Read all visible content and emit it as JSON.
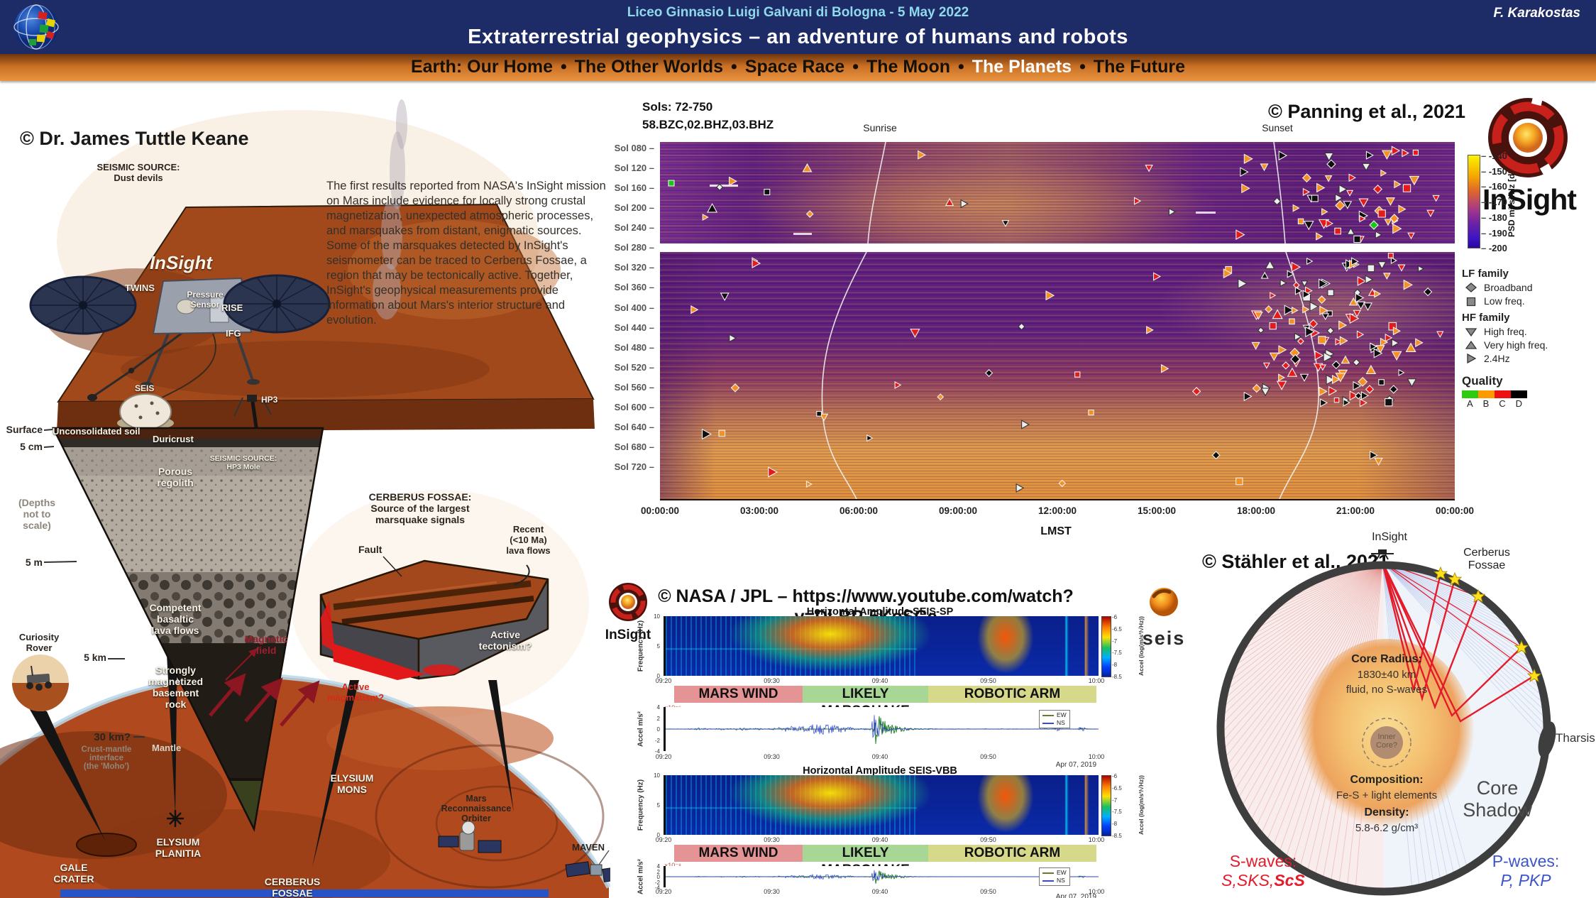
{
  "header": {
    "event": "Liceo Ginnasio Luigi Galvani di Bologna - 5 May 2022",
    "author": "F. Karakostas",
    "title": "Extraterrestrial geophysics – an adventure of humans and robots",
    "nav_separator": "•",
    "nav_items": [
      {
        "label": "Earth: Our Home",
        "active": false
      },
      {
        "label": "The Other Worlds",
        "active": false
      },
      {
        "label": "Space Race",
        "active": false
      },
      {
        "label": "The Moon",
        "active": false
      },
      {
        "label": "The Planets",
        "active": true
      },
      {
        "label": "The Future",
        "active": false
      }
    ]
  },
  "keane": {
    "credit": "© Dr. James Tuttle Keane",
    "paragraph": "The first results reported from NASA's InSight mission on Mars include evidence for locally strong crustal magnetization, unexpected atmospheric processes, and marsquakes from distant, enigmatic sources. Some of the marsquakes detected by InSight's seismometer can be traced to Cerberus Fossae, a region that may be tectonically active. Together, InSight's geophysical measurements provide information about Mars's interior structure and evolution.",
    "labels": {
      "dust_devils": "SEISMIC SOURCE:\nDust devils",
      "insight": "InSight",
      "twins": "TWINS",
      "pressure": "Pressure\nSensor",
      "rise": "RISE",
      "ifg": "IFG",
      "seis": "SEIS",
      "hp3": "HP3",
      "hp3_mole": "SEISMIC SOURCE:\nHP3 Mole",
      "surface": "Surface",
      "unconsolidated": "Unconsolidated soil",
      "duricrust": "Duricrust",
      "d5cm": "5 cm",
      "porous": "Porous\nregolith",
      "depths": "(Depths\nnot to\nscale)",
      "d5m": "5 m",
      "basaltic": "Competent\nbasaltic\nlava flows",
      "curiosity": "Curiosity\nRover",
      "magfield": "Magnetic\nfield",
      "d5km": "5 km",
      "magnetized": "Strongly\nmagnetized\nbasement\nrock",
      "d30km": "30 km?",
      "moho": "Crust-mantle\ninterface\n(the 'Moho')",
      "mantle": "Mantle",
      "gale": "GALE\nCRATER",
      "elysium_planitia": "ELYSIUM\nPLANITIA",
      "cerberus": "CERBERUS\nFOSSAE",
      "elysium_mons": "ELYSIUM\nMONS",
      "mro": "Mars\nReconnaissance\nOrbiter",
      "maven": "MAVEN"
    },
    "block": {
      "title": "CERBERUS FOSSAE:\nSource of the largest\nmarsquake signals",
      "fault": "Fault",
      "lava": "Recent\n(<10 Ma)\nlava flows",
      "tectonism": "Active\ntectonism?",
      "magmatism": "Active\nmagmatism?"
    }
  },
  "panning": {
    "credit": "© Panning et al., 2021",
    "sols": "Sols: 72-750",
    "channels": "58.BZC,02.BHZ,03.BHZ",
    "sunrise": "Sunrise",
    "sunset": "Sunset",
    "xlabel": "LMST",
    "x_ticks": [
      "00:00:00",
      "03:00:00",
      "06:00:00",
      "09:00:00",
      "12:00:00",
      "15:00:00",
      "18:00:00",
      "21:00:00",
      "00:00:00"
    ],
    "sol_ticks": [
      "Sol 080",
      "Sol 120",
      "Sol 160",
      "Sol 200",
      "Sol 240",
      "Sol 280",
      "Sol 320",
      "Sol 360",
      "Sol 400",
      "Sol 440",
      "Sol 480",
      "Sol 520",
      "Sol 560",
      "Sol 600",
      "Sol 640",
      "Sol 680",
      "Sol 720"
    ],
    "colorbar_label": "PSD m²/s²/Hz [dB]",
    "colorbar_ticks": [
      "-140",
      "-150",
      "-160",
      "-170",
      "-180",
      "-190",
      "-200"
    ],
    "insight_logo_text": "InSight",
    "legend": {
      "lf_title": "LF family",
      "lf_items": [
        {
          "marker": "diamond",
          "label": "Broadband"
        },
        {
          "marker": "square",
          "label": "Low freq."
        }
      ],
      "hf_title": "HF family",
      "hf_items": [
        {
          "marker": "triangle-down",
          "label": "High freq."
        },
        {
          "marker": "triangle-up",
          "label": "Very high freq."
        },
        {
          "marker": "triangle-right",
          "label": "2.4Hz"
        }
      ],
      "quality_title": "Quality",
      "quality_labels": [
        "A",
        "B",
        "C",
        "D"
      ],
      "quality_colors": [
        "#2ecc11",
        "#ff9900",
        "#ee1111",
        "#000000"
      ]
    }
  },
  "nasa": {
    "credit": "© NASA / JPL – https://www.youtube.com/watch?v=DLBP-5KoSCc",
    "insight_logo_text": "InSight",
    "seis_logo_text": "seis",
    "spec1_title": "Horizontal Amplitude SEIS-SP",
    "spec2_title": "Horizontal Amplitude SEIS-VBB",
    "freq_label": "Frequency (Hz)",
    "freq_ticks": [
      "10",
      "5",
      "0"
    ],
    "accel_label": "Accel m/s²",
    "accel_ticks": [
      "4",
      "2",
      "0",
      "-2",
      "-4"
    ],
    "accel_scale": "×10⁻⁹",
    "cbar_label": "Accel (log(m/s²/√Hz))",
    "cbar_ticks": [
      "-6",
      "-6.5",
      "-7",
      "-7.5",
      "-8",
      "-8.5"
    ],
    "x_ticks": [
      "09:20",
      "09:30",
      "09:40",
      "09:50",
      "10:00"
    ],
    "date": "Apr 07, 2019",
    "bands": [
      {
        "label": "MARS WIND",
        "color": "#e59495"
      },
      {
        "label": "LIKELY MARSQUAKE",
        "color": "#a8d795"
      },
      {
        "label": "ROBOTIC ARM",
        "color": "#d6d989"
      }
    ],
    "trace_legend": [
      {
        "label": "EW",
        "color": "#6a7a2a"
      },
      {
        "label": "NS",
        "color": "#3a4ac8"
      }
    ]
  },
  "stahler": {
    "credit": "© Stähler et al., 2021",
    "insight_label": "InSight",
    "cerberus_label": "Cerberus\nFossae",
    "core_radius_title": "Core Radius:",
    "core_radius_value": "1830±40 km",
    "core_radius_note": "fluid, no S-waves",
    "inner_core": "Inner\nCore?",
    "composition_title": "Composition:",
    "composition_value": "Fe-S + light elements",
    "density_title": "Density:",
    "density_value": "5.8-6.2 g/cm³",
    "core_shadow": "Core\nShadow",
    "tharsis": "Tharsis",
    "s_title": "S-waves:",
    "s_value_a": "S,SKS,",
    "s_value_b": "ScS",
    "p_title": "P-waves:",
    "p_value": "P, PKP",
    "s_color": "#e41b2a",
    "p_color": "#3c55c8"
  }
}
